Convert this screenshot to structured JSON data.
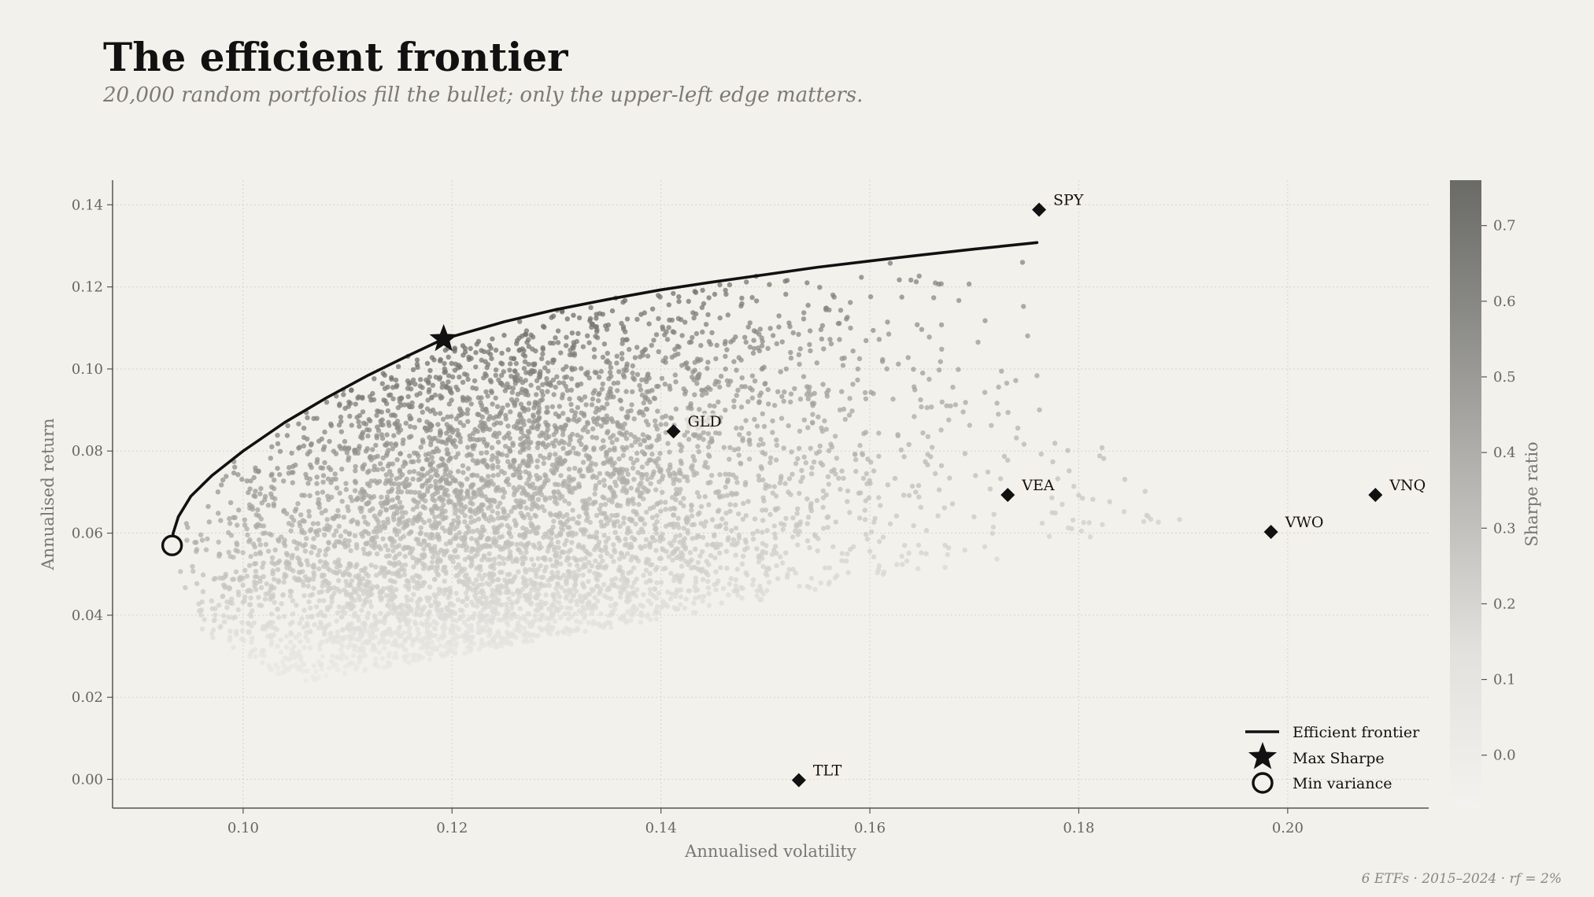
{
  "header": {
    "title": "The efficient frontier",
    "subtitle": "20,000 random portfolios fill the bullet; only the upper-left edge matters."
  },
  "footer": {
    "note": "6 ETFs  ·  2015–2024  ·  rf = 2%"
  },
  "colors": {
    "background": "#f3f1eb",
    "ink": "#111111",
    "cmap_low": "#f3f2ee",
    "cmap_high": "#6a6a66"
  },
  "chart_data": {
    "type": "scatter",
    "xlabel": "Annualised volatility",
    "ylabel": "Annualised return",
    "xlim": [
      0.0875,
      0.2135
    ],
    "ylim": [
      -0.007,
      0.146
    ],
    "xticks": [
      0.1,
      0.12,
      0.14,
      0.16,
      0.18,
      0.2
    ],
    "xtick_labels": [
      "0.10",
      "0.12",
      "0.14",
      "0.16",
      "0.18",
      "0.20"
    ],
    "yticks": [
      0.0,
      0.02,
      0.04,
      0.06,
      0.08,
      0.1,
      0.12,
      0.14
    ],
    "ytick_labels": [
      "0.00",
      "0.02",
      "0.04",
      "0.06",
      "0.08",
      "0.10",
      "0.12",
      "0.14"
    ],
    "grid": true,
    "random_portfolios": {
      "count": 20000,
      "color_by": "Sharpe ratio",
      "color_range": [
        -0.07,
        0.76
      ]
    },
    "colorbar": {
      "label": "Sharpe ratio",
      "range": [
        -0.07,
        0.76
      ],
      "ticks": [
        0.0,
        0.1,
        0.2,
        0.3,
        0.4,
        0.5,
        0.6,
        0.7
      ],
      "tick_labels": [
        "0.0",
        "0.1",
        "0.2",
        "0.3",
        "0.4",
        "0.5",
        "0.6",
        "0.7"
      ]
    },
    "efficient_frontier": {
      "name": "Efficient frontier",
      "points": [
        [
          0.0932,
          0.057
        ],
        [
          0.0933,
          0.06
        ],
        [
          0.0938,
          0.064
        ],
        [
          0.095,
          0.069
        ],
        [
          0.097,
          0.074
        ],
        [
          0.1,
          0.08
        ],
        [
          0.104,
          0.087
        ],
        [
          0.108,
          0.093
        ],
        [
          0.112,
          0.0985
        ],
        [
          0.116,
          0.1035
        ],
        [
          0.1192,
          0.1073
        ],
        [
          0.125,
          0.1115
        ],
        [
          0.13,
          0.1145
        ],
        [
          0.135,
          0.117
        ],
        [
          0.14,
          0.1193
        ],
        [
          0.145,
          0.1212
        ],
        [
          0.15,
          0.123
        ],
        [
          0.155,
          0.1248
        ],
        [
          0.16,
          0.1263
        ],
        [
          0.165,
          0.1278
        ],
        [
          0.17,
          0.1292
        ],
        [
          0.176,
          0.1308
        ]
      ]
    },
    "max_sharpe": {
      "name": "Max Sharpe",
      "x": 0.1192,
      "y": 0.1073
    },
    "min_variance": {
      "name": "Min variance",
      "x": 0.0932,
      "y": 0.057
    },
    "etfs": [
      {
        "name": "SPY",
        "x": 0.1762,
        "y": 0.1388
      },
      {
        "name": "GLD",
        "x": 0.1412,
        "y": 0.0848
      },
      {
        "name": "VEA",
        "x": 0.1732,
        "y": 0.0693
      },
      {
        "name": "VWO",
        "x": 0.1984,
        "y": 0.0603
      },
      {
        "name": "VNQ",
        "x": 0.2084,
        "y": 0.0693
      },
      {
        "name": "TLT",
        "x": 0.1532,
        "y": -0.0002
      }
    ],
    "legend": {
      "position": "lower-right",
      "entries": [
        "Efficient frontier",
        "Max Sharpe",
        "Min variance"
      ]
    }
  }
}
